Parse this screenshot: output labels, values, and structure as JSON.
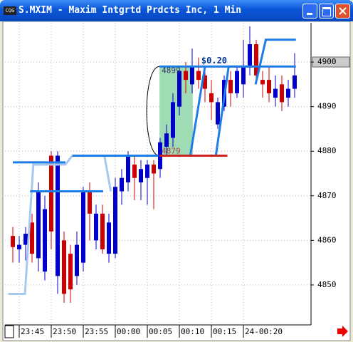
{
  "window": {
    "title": "S.MXIM - Maxim Intgrtd Prdcts Inc, 1 Min"
  },
  "chart_data": {
    "type": "candlestick",
    "categories": [
      null,
      "23:45",
      null,
      null,
      null,
      null,
      "23:50",
      null,
      null,
      null,
      null,
      "23:55",
      null,
      null,
      null,
      null,
      "00:00",
      null,
      null,
      null,
      null,
      "00:05",
      null,
      null,
      null,
      null,
      "00:10",
      null,
      null,
      null,
      null,
      "00:15",
      null,
      null,
      null,
      null,
      "24-00:20",
      null,
      null,
      null,
      null,
      null,
      null,
      null,
      null
    ],
    "open": [
      4861,
      4858,
      4859,
      4864,
      4856,
      4853,
      4879,
      4852,
      4860,
      4857,
      4852,
      4855,
      4871,
      4860,
      4866,
      4857,
      4857,
      4871,
      4873,
      4877,
      4873,
      4874,
      4877,
      4876,
      4881,
      4883,
      4890,
      4898,
      4895,
      4898,
      4897,
      4893,
      4886,
      4890,
      4896,
      4893,
      4895,
      4899,
      4904,
      4896,
      4896,
      4892,
      4895,
      4892,
      4894
    ],
    "high": [
      4863,
      4861,
      4863,
      4866,
      4873,
      4870,
      4880,
      4880,
      4862,
      4859,
      4862,
      4872,
      4873,
      4868,
      4868,
      4866,
      4874,
      4876,
      4880,
      4879,
      4878,
      4878,
      4878,
      4883,
      4886,
      4893,
      4899,
      4900,
      4903,
      4901,
      4899,
      4896,
      4892,
      4897,
      4898,
      4899,
      4905,
      4908,
      4905,
      4898,
      4899,
      4897,
      4897,
      4896,
      4902
    ],
    "low": [
      4855,
      4855,
      4855.5,
      4855,
      4853,
      4851,
      4858,
      4848,
      4846,
      4846,
      4850,
      4853,
      4860,
      4858,
      4857,
      4855,
      4856,
      4868,
      4871,
      4869,
      4869,
      4868,
      4867,
      4874,
      4879,
      4881,
      4888,
      4893,
      4893,
      4894,
      4891,
      4887,
      4885,
      4889,
      4890,
      4892,
      4892,
      4897,
      4896,
      4892,
      4891,
      4890,
      4889,
      4890,
      4892
    ],
    "close": [
      4858.5,
      4859,
      4861.5,
      4857,
      4871,
      4867,
      4862,
      4879,
      4848,
      4849,
      4859,
      4871,
      4866,
      4866,
      4858,
      4864,
      4872,
      4874,
      4879,
      4874,
      4876,
      4877,
      4875,
      4882,
      4884,
      4891,
      4898,
      4896,
      4899,
      4896,
      4894,
      4891,
      4891,
      4896,
      4893,
      4898,
      4899,
      4904,
      4897,
      4895,
      4893,
      4894,
      4891,
      4894,
      4897
    ],
    "up_color": "#0000cc",
    "down_color": "#cc0000",
    "ylim": [
      4841.2,
      4908.8
    ],
    "yticks": [
      4850,
      4860,
      4870,
      4880,
      4890,
      4900
    ],
    "grid": true,
    "lines": [
      {
        "color": "#a8c8f0",
        "x": [
          -0.7,
          1.9,
          3.2,
          8.2,
          9.3,
          14.3,
          15.3
        ],
        "values": [
          4848,
          4848,
          4877,
          4877,
          4879,
          4879,
          4871
        ]
      },
      {
        "color": "#1e7ce8",
        "x": [
          0,
          8.2
        ],
        "values": [
          4877.5,
          4877.5
        ]
      },
      {
        "color": "#1e7ce8",
        "x": [
          2.7,
          14.1
        ],
        "values": [
          4871,
          4871
        ]
      },
      {
        "color": "#1e7ce8",
        "x": [
          9.3,
          22.7
        ],
        "values": [
          4879,
          4879
        ]
      },
      {
        "color": "#1e7ce8",
        "x": [
          22.9,
          44.2
        ],
        "values": [
          4899,
          4899
        ]
      },
      {
        "color": "#1e7ce8",
        "x": [
          27.7,
          30
        ],
        "values": [
          4879,
          4899
        ]
      },
      {
        "color": "#1e7ce8",
        "x": [
          31.7,
          33.7,
          37.5
        ],
        "values": [
          4879,
          4899,
          4899
        ]
      },
      {
        "color": "#1e7ce8",
        "x": [
          37.9,
          39.5,
          44.2
        ],
        "values": [
          4895,
          4905,
          4905
        ]
      },
      {
        "color": "#cc2222",
        "x": [
          22.9,
          33.5
        ],
        "values": [
          4879,
          4879
        ]
      }
    ],
    "range": {
      "from": 22.9,
      "to": 28.1,
      "low": 4879,
      "high": 4899,
      "label": "$0.20"
    }
  }
}
